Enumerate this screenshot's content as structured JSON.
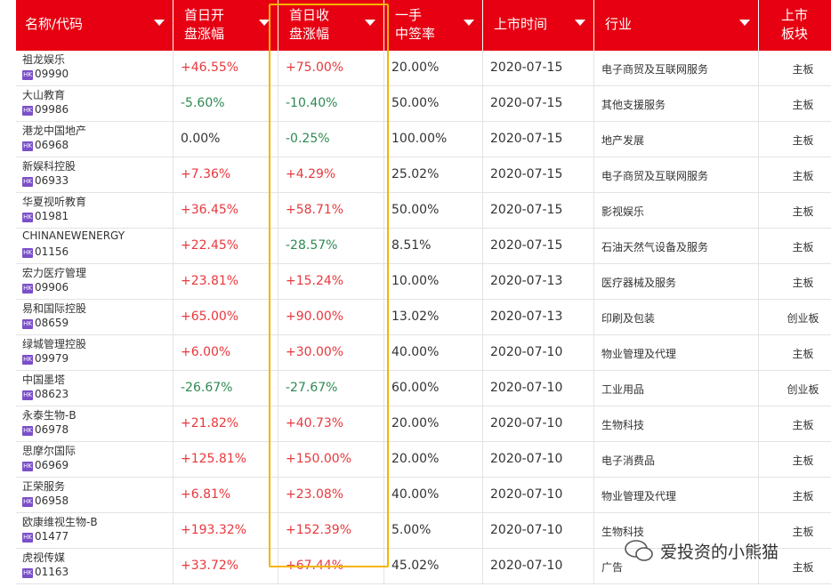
{
  "table": {
    "headers": [
      [
        "名称/代码"
      ],
      [
        "首日开",
        "盘涨幅"
      ],
      [
        "首日收",
        "盘涨幅"
      ],
      [
        "一手",
        "中签率"
      ],
      [
        "上市时间"
      ],
      [
        "行业"
      ],
      [
        "上市",
        "板块"
      ]
    ],
    "badge": "HK",
    "rows": [
      [
        "祖龙娱乐",
        "09990",
        "+46.55%",
        "+75.00%",
        "20.00%",
        "2020-07-15",
        "电子商贸及互联网服务",
        "主板"
      ],
      [
        "大山教育",
        "09986",
        "-5.60%",
        "-10.40%",
        "50.00%",
        "2020-07-15",
        "其他支援服务",
        "主板"
      ],
      [
        "港龙中国地产",
        "06968",
        "0.00%",
        "-0.25%",
        "100.00%",
        "2020-07-15",
        "地产发展",
        "主板"
      ],
      [
        "新娱科控股",
        "06933",
        "+7.36%",
        "+4.29%",
        "25.02%",
        "2020-07-15",
        "电子商贸及互联网服务",
        "主板"
      ],
      [
        "华夏视听教育",
        "01981",
        "+36.45%",
        "+58.71%",
        "50.00%",
        "2020-07-15",
        "影视娱乐",
        "主板"
      ],
      [
        "CHINANEWENERGY",
        "01156",
        "+22.45%",
        "-28.57%",
        "8.51%",
        "2020-07-15",
        "石油天然气设备及服务",
        "主板"
      ],
      [
        "宏力医疗管理",
        "09906",
        "+23.81%",
        "+15.24%",
        "10.00%",
        "2020-07-13",
        "医疗器械及服务",
        "主板"
      ],
      [
        "易和国际控股",
        "08659",
        "+65.00%",
        "+90.00%",
        "13.02%",
        "2020-07-13",
        "印刷及包装",
        "创业板"
      ],
      [
        "绿城管理控股",
        "09979",
        "+6.00%",
        "+30.00%",
        "40.00%",
        "2020-07-10",
        "物业管理及代理",
        "主板"
      ],
      [
        "中国墨塔",
        "08623",
        "-26.67%",
        "-27.67%",
        "60.00%",
        "2020-07-10",
        "工业用品",
        "创业板"
      ],
      [
        "永泰生物-B",
        "06978",
        "+21.82%",
        "+40.73%",
        "20.00%",
        "2020-07-10",
        "生物科技",
        "主板"
      ],
      [
        "思摩尔国际",
        "06969",
        "+125.81%",
        "+150.00%",
        "20.00%",
        "2020-07-10",
        "电子消费品",
        "主板"
      ],
      [
        "正荣服务",
        "06958",
        "+6.81%",
        "+23.08%",
        "40.00%",
        "2020-07-10",
        "物业管理及代理",
        "主板"
      ],
      [
        "欧康维视生物-B",
        "01477",
        "+193.32%",
        "+152.39%",
        "5.00%",
        "2020-07-10",
        "生物科技",
        "主板"
      ],
      [
        "虎视传媒",
        "01163",
        "+33.72%",
        "+67.44%",
        "45.02%",
        "2020-07-10",
        "广告",
        "主板"
      ]
    ]
  },
  "watermark": "爱投资的小熊猫"
}
